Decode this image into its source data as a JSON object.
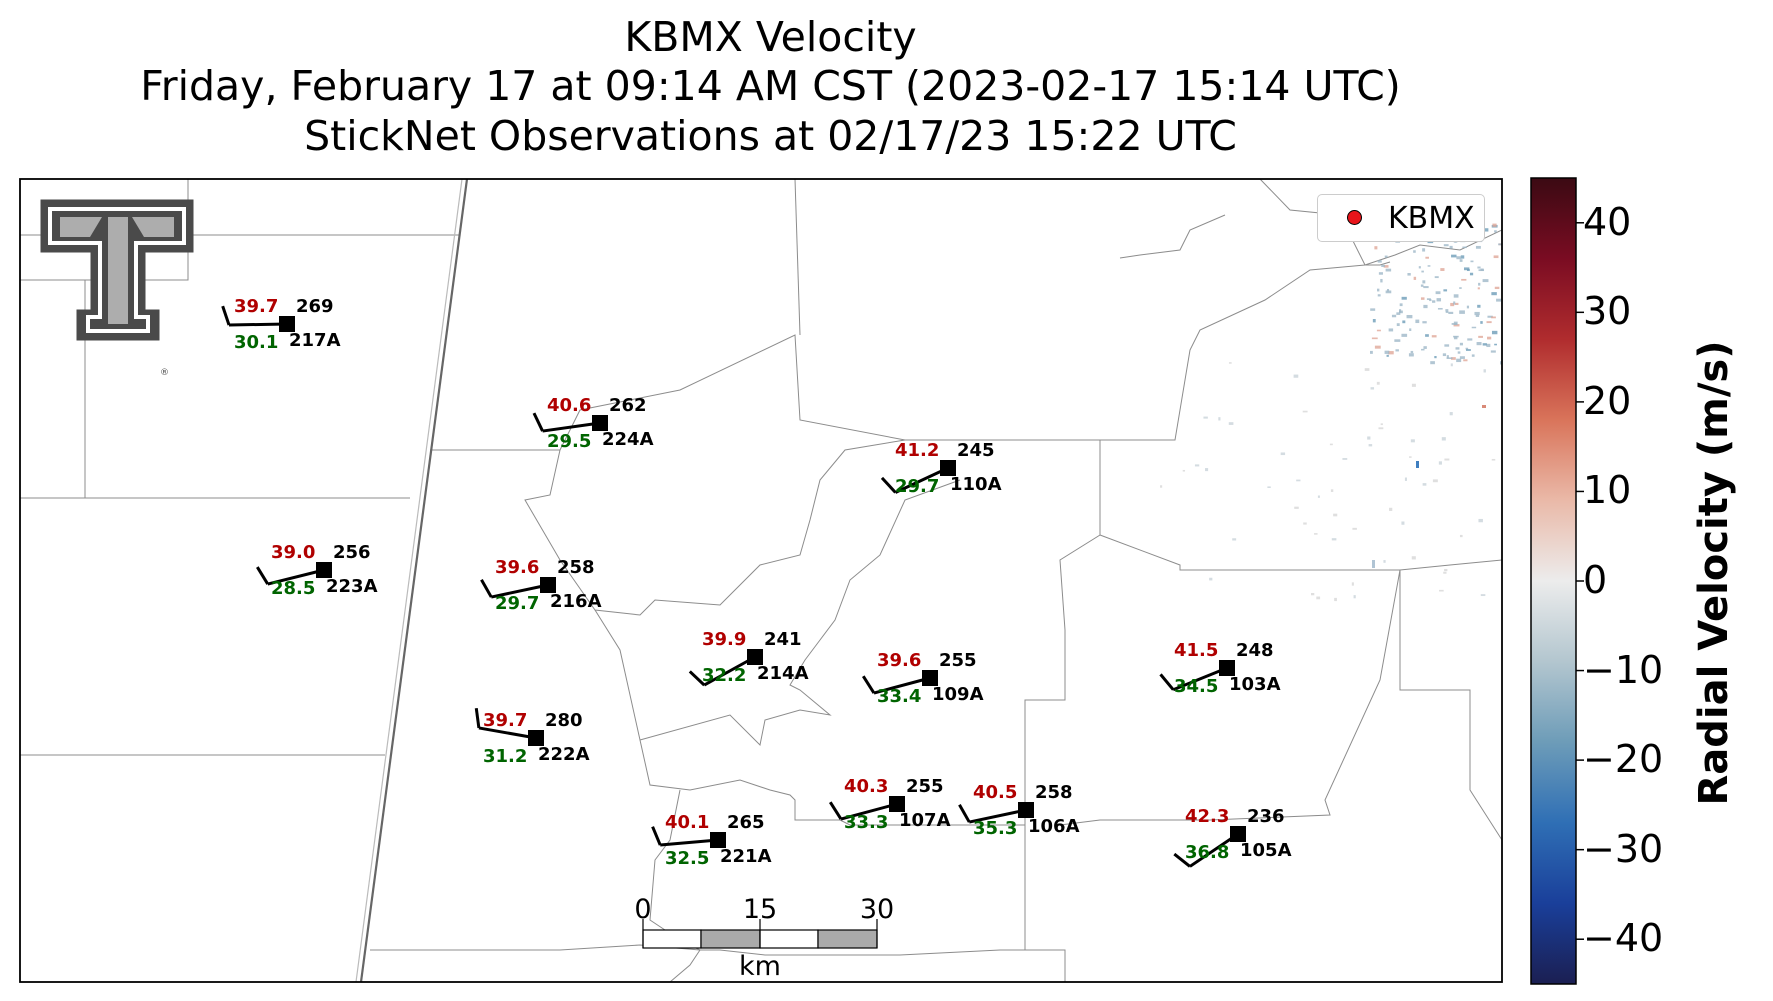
{
  "title": {
    "line1": "KBMX Velocity",
    "line2": "Friday, February 17 at 09:14 AM CST (2023-02-17 15:14 UTC)",
    "line3": "StickNet Observations at 02/17/23 15:22 UTC"
  },
  "legend": {
    "label": "KBMX",
    "color": "#e8141a"
  },
  "colorbar": {
    "label": "Radial Velocity (m/s)",
    "min": -45,
    "max": 45,
    "ticks": [
      "40",
      "30",
      "20",
      "10",
      "0",
      "−10",
      "−20",
      "−30",
      "−40"
    ],
    "colors": [
      "#3b0a13",
      "#7a0c22",
      "#b02c2e",
      "#d9745a",
      "#eab9a8",
      "#ececec",
      "#b3c6cf",
      "#6d9cb8",
      "#2f6fb5",
      "#1a3f9a",
      "#1b1f52"
    ]
  },
  "scale_bar": {
    "labels": [
      "0",
      "15",
      "30"
    ],
    "unit": "km"
  },
  "logo": {
    "name": "Texas Tech Double T"
  },
  "stations": [
    {
      "id": "217A",
      "temp": "39.7",
      "dew": "30.1",
      "dir": "269"
    },
    {
      "id": "224A",
      "temp": "40.6",
      "dew": "29.5",
      "dir": "262"
    },
    {
      "id": "110A",
      "temp": "41.2",
      "dew": "29.7",
      "dir": "245"
    },
    {
      "id": "223A",
      "temp": "39.0",
      "dew": "28.5",
      "dir": "256"
    },
    {
      "id": "216A",
      "temp": "39.6",
      "dew": "29.7",
      "dir": "258"
    },
    {
      "id": "214A",
      "temp": "39.9",
      "dew": "32.2",
      "dir": "241"
    },
    {
      "id": "109A",
      "temp": "39.6",
      "dew": "33.4",
      "dir": "255"
    },
    {
      "id": "103A",
      "temp": "41.5",
      "dew": "34.5",
      "dir": "248"
    },
    {
      "id": "222A",
      "temp": "39.7",
      "dew": "31.2",
      "dir": "280"
    },
    {
      "id": "221A",
      "temp": "40.1",
      "dew": "32.5",
      "dir": "265"
    },
    {
      "id": "107A",
      "temp": "40.3",
      "dew": "33.3",
      "dir": "255"
    },
    {
      "id": "106A",
      "temp": "40.5",
      "dew": "35.3",
      "dir": "258"
    },
    {
      "id": "105A",
      "temp": "42.3",
      "dew": "36.8",
      "dir": "236"
    }
  ],
  "colors": {
    "temp": "#b00000",
    "dew": "#006400",
    "text": "#000000"
  }
}
